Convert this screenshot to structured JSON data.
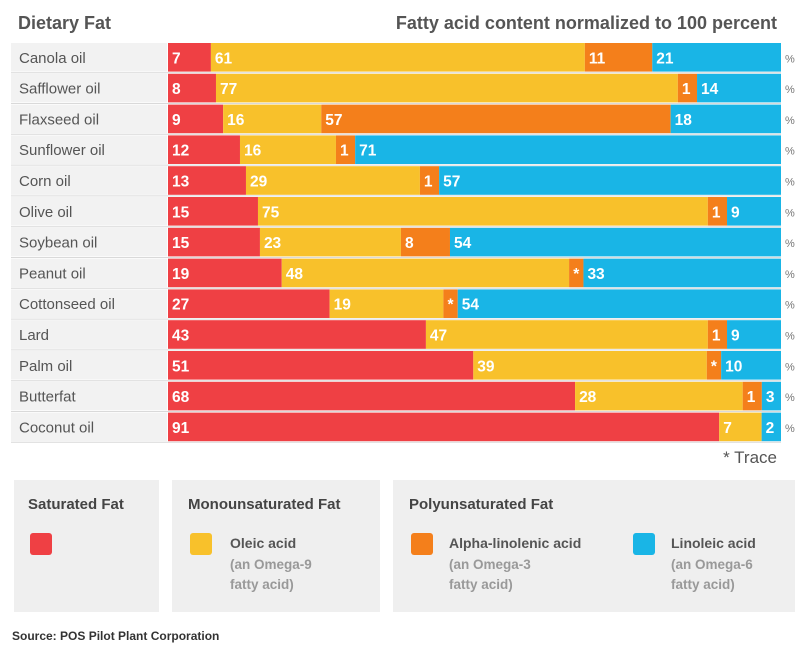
{
  "header": {
    "left": "Dietary Fat",
    "right": "Fatty acid content normalized to 100 percent"
  },
  "trace_note": "* Trace",
  "percent_symbol": "%",
  "trace_symbol": "*",
  "colors": {
    "saturated": "#ef4044",
    "oleic": "#f8c12b",
    "alpha_linolenic": "#f47f1b",
    "linoleic": "#19b5e6"
  },
  "chart_data": {
    "type": "bar",
    "orientation": "horizontal",
    "stacked": true,
    "title": "Fatty acid content normalized to 100 percent",
    "xlim": [
      0,
      100
    ],
    "categories": [
      "Canola oil",
      "Safflower oil",
      "Flaxseed oil",
      "Sunflower oil",
      "Corn oil",
      "Olive oil",
      "Soybean oil",
      "Peanut oil",
      "Cottonseed oil",
      "Lard",
      "Palm oil",
      "Butterfat",
      "Coconut oil"
    ],
    "series": [
      {
        "name": "Saturated Fat",
        "color": "#ef4044",
        "values": [
          7,
          8,
          9,
          12,
          13,
          15,
          15,
          19,
          27,
          43,
          51,
          68,
          91
        ]
      },
      {
        "name": "Oleic acid",
        "color": "#f8c12b",
        "values": [
          61,
          77,
          16,
          16,
          29,
          75,
          23,
          48,
          19,
          47,
          39,
          28,
          7
        ]
      },
      {
        "name": "Alpha-linolenic acid",
        "color": "#f47f1b",
        "values": [
          11,
          1,
          57,
          1,
          1,
          1,
          8,
          "*",
          "*",
          1,
          "*",
          1,
          0
        ]
      },
      {
        "name": "Linoleic acid",
        "color": "#19b5e6",
        "values": [
          21,
          14,
          18,
          71,
          57,
          9,
          54,
          33,
          54,
          9,
          10,
          3,
          2
        ]
      }
    ]
  },
  "legend": {
    "groups": [
      {
        "title": "Saturated Fat"
      },
      {
        "title": "Monounsaturated Fat"
      },
      {
        "title": "Polyunsaturated Fat"
      }
    ],
    "items": [
      {
        "label": "Oleic acid",
        "sub": "(an Omega-9\nfatty acid)"
      },
      {
        "label": "Alpha-linolenic acid",
        "sub": "(an Omega-3\nfatty acid)"
      },
      {
        "label": "Linoleic acid",
        "sub": "(an Omega-6\nfatty acid)"
      }
    ]
  },
  "source": "Source: POS Pilot Plant Corporation"
}
